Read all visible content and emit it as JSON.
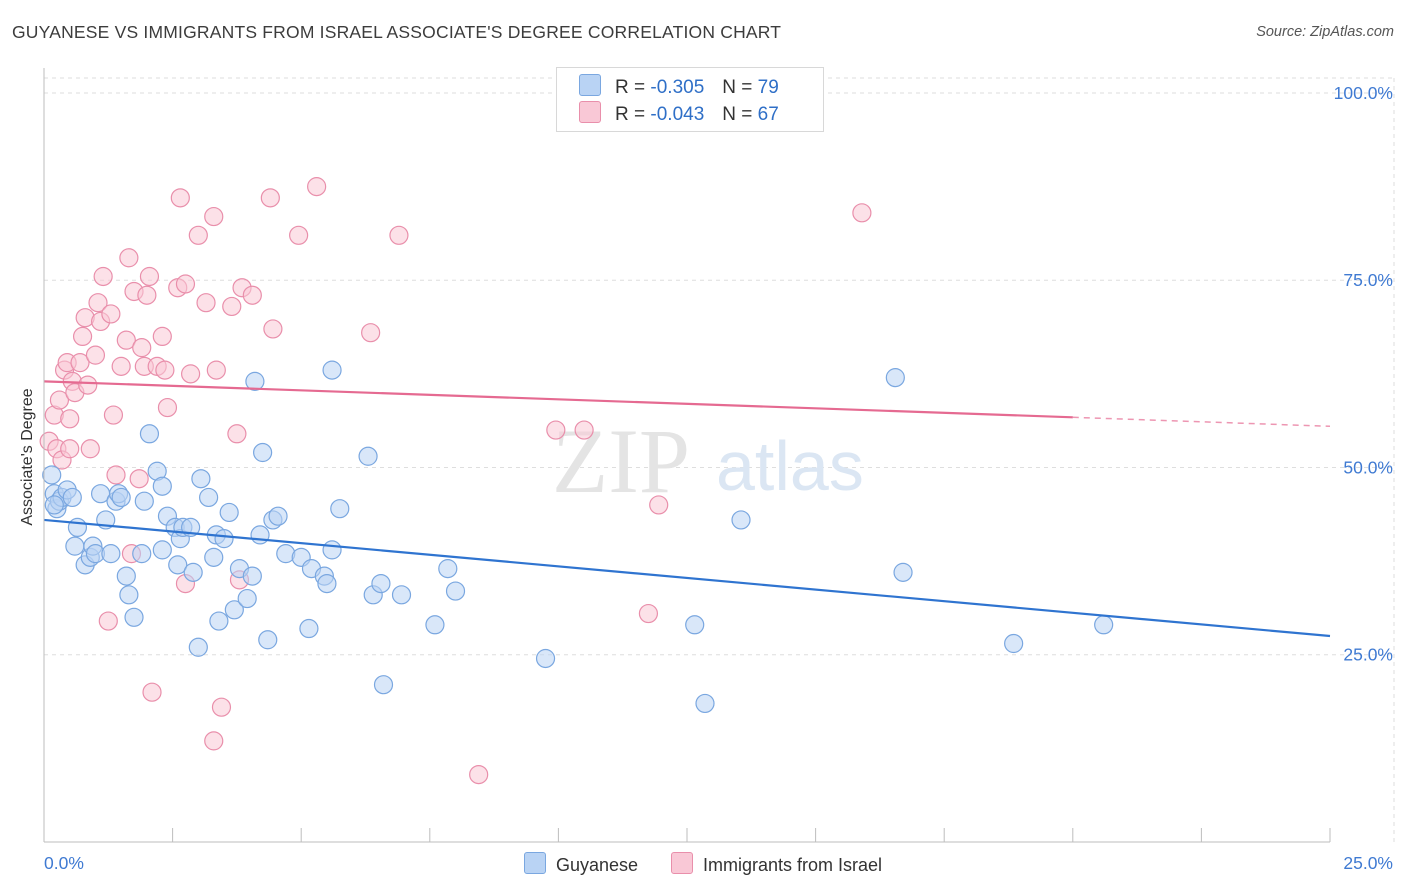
{
  "header": {
    "title": "GUYANESE VS IMMIGRANTS FROM ISRAEL ASSOCIATE'S DEGREE CORRELATION CHART",
    "source": "Source: ZipAtlas.com"
  },
  "watermark": {
    "part1": "ZIP",
    "part2": "atlas"
  },
  "colors": {
    "blue_fill": "#b9d3f4",
    "blue_stroke": "#7aa7e0",
    "blue_line": "#2f74d0",
    "pink_fill": "#f9c8d6",
    "pink_stroke": "#e98fab",
    "pink_line": "#e56a91",
    "axis_text": "#3f7ad2"
  },
  "legend": {
    "r_label": "R =",
    "n_label": "N =",
    "series": [
      {
        "r": "-0.305",
        "n": "79"
      },
      {
        "r": "-0.043",
        "n": "67"
      }
    ]
  },
  "chart_data": {
    "type": "scatter",
    "title": "GUYANESE VS IMMIGRANTS FROM ISRAEL ASSOCIATE'S DEGREE CORRELATION CHART",
    "xlabel": "",
    "ylabel": "Associate's Degree",
    "xlim": [
      0,
      25
    ],
    "ylim": [
      0,
      102
    ],
    "x_tick_labels": [
      "0.0%",
      "25.0%"
    ],
    "y_tick_labels": [
      "25.0%",
      "50.0%",
      "75.0%",
      "100.0%"
    ],
    "y_ticks": [
      25,
      50,
      75,
      100
    ],
    "grid": true,
    "legend_position": "top-center",
    "series": [
      {
        "name": "Guyanese",
        "trend": {
          "x0": 0,
          "y0": 43.0,
          "x1": 25,
          "y1": 27.5,
          "dash_from": 25
        },
        "points": [
          [
            0.15,
            49.0
          ],
          [
            0.2,
            46.5
          ],
          [
            0.25,
            44.5
          ],
          [
            0.3,
            45.5
          ],
          [
            0.35,
            46.0
          ],
          [
            0.45,
            47.0
          ],
          [
            0.55,
            46.0
          ],
          [
            0.65,
            42.0
          ],
          [
            0.6,
            39.5
          ],
          [
            0.8,
            37.0
          ],
          [
            0.9,
            38.0
          ],
          [
            0.95,
            39.5
          ],
          [
            1.0,
            38.5
          ],
          [
            1.1,
            46.5
          ],
          [
            1.2,
            43.0
          ],
          [
            1.3,
            38.5
          ],
          [
            1.4,
            45.5
          ],
          [
            1.45,
            46.5
          ],
          [
            1.5,
            46.0
          ],
          [
            1.6,
            35.5
          ],
          [
            1.65,
            33.0
          ],
          [
            1.75,
            30.0
          ],
          [
            1.9,
            38.5
          ],
          [
            1.95,
            45.5
          ],
          [
            2.05,
            54.5
          ],
          [
            2.2,
            49.5
          ],
          [
            2.3,
            47.5
          ],
          [
            2.3,
            39.0
          ],
          [
            2.4,
            43.5
          ],
          [
            2.55,
            42.0
          ],
          [
            2.6,
            37.0
          ],
          [
            2.65,
            40.5
          ],
          [
            2.7,
            42.0
          ],
          [
            2.85,
            42.0
          ],
          [
            2.9,
            36.0
          ],
          [
            3.0,
            26.0
          ],
          [
            3.05,
            48.5
          ],
          [
            3.2,
            46.0
          ],
          [
            3.3,
            38.0
          ],
          [
            3.35,
            41.0
          ],
          [
            3.4,
            29.5
          ],
          [
            3.5,
            40.5
          ],
          [
            3.6,
            44.0
          ],
          [
            3.7,
            31.0
          ],
          [
            3.8,
            36.5
          ],
          [
            3.95,
            32.5
          ],
          [
            4.05,
            35.5
          ],
          [
            4.1,
            61.5
          ],
          [
            4.2,
            41.0
          ],
          [
            4.25,
            52.0
          ],
          [
            4.35,
            27.0
          ],
          [
            4.45,
            43.0
          ],
          [
            4.55,
            43.5
          ],
          [
            4.7,
            38.5
          ],
          [
            5.0,
            38.0
          ],
          [
            5.15,
            28.5
          ],
          [
            5.2,
            36.5
          ],
          [
            5.45,
            35.5
          ],
          [
            5.5,
            34.5
          ],
          [
            5.6,
            39.0
          ],
          [
            5.75,
            44.5
          ],
          [
            6.3,
            51.5
          ],
          [
            6.4,
            33.0
          ],
          [
            6.55,
            34.5
          ],
          [
            6.6,
            21.0
          ],
          [
            6.95,
            33.0
          ],
          [
            7.6,
            29.0
          ],
          [
            7.85,
            36.5
          ],
          [
            8.0,
            33.5
          ],
          [
            9.75,
            24.5
          ],
          [
            12.65,
            29.0
          ],
          [
            12.85,
            18.5
          ],
          [
            13.55,
            43.0
          ],
          [
            16.55,
            62.0
          ],
          [
            16.7,
            36.0
          ],
          [
            18.85,
            26.5
          ],
          [
            20.6,
            29.0
          ],
          [
            5.6,
            63.0
          ],
          [
            0.2,
            45.0
          ]
        ]
      },
      {
        "name": "Immigrants from Israel",
        "trend": {
          "x0": 0,
          "y0": 61.5,
          "x1": 25,
          "y1": 55.5,
          "dash_from": 20
        },
        "points": [
          [
            0.1,
            53.5
          ],
          [
            0.2,
            57.0
          ],
          [
            0.25,
            52.5
          ],
          [
            0.3,
            59.0
          ],
          [
            0.35,
            51.0
          ],
          [
            0.4,
            63.0
          ],
          [
            0.45,
            64.0
          ],
          [
            0.5,
            56.5
          ],
          [
            0.5,
            52.5
          ],
          [
            0.55,
            61.5
          ],
          [
            0.6,
            60.0
          ],
          [
            0.7,
            64.0
          ],
          [
            0.75,
            67.5
          ],
          [
            0.8,
            70.0
          ],
          [
            0.85,
            61.0
          ],
          [
            0.9,
            52.5
          ],
          [
            1.0,
            65.0
          ],
          [
            1.05,
            72.0
          ],
          [
            1.1,
            69.5
          ],
          [
            1.15,
            75.5
          ],
          [
            1.25,
            29.5
          ],
          [
            1.3,
            70.5
          ],
          [
            1.35,
            57.0
          ],
          [
            1.4,
            49.0
          ],
          [
            1.5,
            63.5
          ],
          [
            1.6,
            67.0
          ],
          [
            1.65,
            78.0
          ],
          [
            1.7,
            38.5
          ],
          [
            1.75,
            73.5
          ],
          [
            1.85,
            48.5
          ],
          [
            1.9,
            66.0
          ],
          [
            1.95,
            63.5
          ],
          [
            2.0,
            73.0
          ],
          [
            2.05,
            75.5
          ],
          [
            2.1,
            20.0
          ],
          [
            2.2,
            63.5
          ],
          [
            2.3,
            67.5
          ],
          [
            2.35,
            63.0
          ],
          [
            2.4,
            58.0
          ],
          [
            2.6,
            74.0
          ],
          [
            2.65,
            86.0
          ],
          [
            2.75,
            74.5
          ],
          [
            2.75,
            34.5
          ],
          [
            2.85,
            62.5
          ],
          [
            3.0,
            81.0
          ],
          [
            3.15,
            72.0
          ],
          [
            3.3,
            83.5
          ],
          [
            3.3,
            13.5
          ],
          [
            3.35,
            63.0
          ],
          [
            3.45,
            18.0
          ],
          [
            3.65,
            71.5
          ],
          [
            3.75,
            54.5
          ],
          [
            3.8,
            35.0
          ],
          [
            3.85,
            74.0
          ],
          [
            4.05,
            73.0
          ],
          [
            4.4,
            86.0
          ],
          [
            4.45,
            68.5
          ],
          [
            4.95,
            81.0
          ],
          [
            5.3,
            87.5
          ],
          [
            6.35,
            68.0
          ],
          [
            6.9,
            81.0
          ],
          [
            8.45,
            9.0
          ],
          [
            9.95,
            55.0
          ],
          [
            10.5,
            55.0
          ],
          [
            11.75,
            30.5
          ],
          [
            11.95,
            45.0
          ],
          [
            15.9,
            84.0
          ]
        ]
      }
    ]
  }
}
